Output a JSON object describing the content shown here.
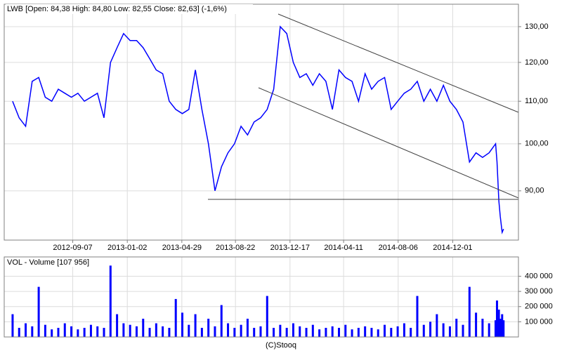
{
  "chart_data": [
    {
      "type": "line",
      "title": "LWB [Open: 84,38  High: 84,80  Low: 82,55  Close: 82,63] (-1,6%)",
      "log": true,
      "grid": true,
      "xlim": [
        "2012-04-13",
        "2015-04-21"
      ],
      "xticks": [
        "2012-09-07",
        "2013-01-02",
        "2013-04-29",
        "2013-08-22",
        "2013-12-17",
        "2014-04-11",
        "2014-08-06",
        "2014-12-01"
      ],
      "ylim": [
        80.6,
        136.7
      ],
      "yticks": [
        {
          "value": 90,
          "label": "90,00"
        },
        {
          "value": 100,
          "label": "100,00"
        },
        {
          "value": 110,
          "label": "110,00"
        },
        {
          "value": 120,
          "label": "120,00"
        },
        {
          "value": 130,
          "label": "130,00"
        }
      ],
      "x": [
        "2012-05-01",
        "2012-05-15",
        "2012-05-29",
        "2012-06-12",
        "2012-06-26",
        "2012-07-10",
        "2012-07-24",
        "2012-08-07",
        "2012-08-21",
        "2012-09-04",
        "2012-09-18",
        "2012-10-02",
        "2012-10-16",
        "2012-10-30",
        "2012-11-13",
        "2012-11-27",
        "2012-12-11",
        "2012-12-25",
        "2013-01-08",
        "2013-01-22",
        "2013-02-05",
        "2013-02-19",
        "2013-03-05",
        "2013-03-19",
        "2013-04-02",
        "2013-04-16",
        "2013-04-30",
        "2013-05-14",
        "2013-05-28",
        "2013-06-11",
        "2013-06-25",
        "2013-07-09",
        "2013-07-23",
        "2013-08-06",
        "2013-08-20",
        "2013-09-03",
        "2013-09-17",
        "2013-10-01",
        "2013-10-15",
        "2013-10-29",
        "2013-11-12",
        "2013-11-26",
        "2013-12-10",
        "2013-12-24",
        "2014-01-07",
        "2014-01-21",
        "2014-02-04",
        "2014-02-18",
        "2014-03-04",
        "2014-03-18",
        "2014-04-01",
        "2014-04-15",
        "2014-04-29",
        "2014-05-13",
        "2014-05-27",
        "2014-06-10",
        "2014-06-24",
        "2014-07-08",
        "2014-07-22",
        "2014-08-05",
        "2014-08-19",
        "2014-09-02",
        "2014-09-16",
        "2014-09-30",
        "2014-10-14",
        "2014-10-28",
        "2014-11-11",
        "2014-11-25",
        "2014-12-09",
        "2014-12-23",
        "2015-01-06",
        "2015-01-20",
        "2015-02-03",
        "2015-02-17",
        "2015-03-03",
        "2015-03-06",
        "2015-03-10",
        "2015-03-13",
        "2015-03-17",
        "2015-03-20"
      ],
      "series": [
        {
          "name": "LWB",
          "color": "#0000ff",
          "values": [
            110,
            106,
            104,
            115,
            116,
            111,
            110,
            113,
            112,
            111,
            112,
            110,
            111,
            112,
            106,
            120,
            124,
            128,
            126,
            126,
            124,
            121,
            118,
            117,
            110,
            108,
            107,
            108,
            118,
            108,
            100,
            90,
            95,
            98,
            100,
            104,
            102,
            105,
            106,
            108,
            113,
            130,
            128,
            120,
            116,
            117,
            114,
            117,
            115,
            108,
            118,
            116,
            115,
            110,
            117,
            113,
            115,
            116,
            108,
            110,
            112,
            113,
            115,
            110,
            113,
            110,
            114,
            110,
            108,
            105,
            96,
            98,
            97,
            98,
            100,
            96,
            88,
            85,
            82,
            82.63
          ]
        }
      ]
    },
    {
      "type": "bar",
      "title": "VOL - Volume [107 956]",
      "grid": true,
      "xlim": [
        "2012-04-13",
        "2015-04-21"
      ],
      "ylim": [
        0,
        527000
      ],
      "yticks": [
        {
          "value": 100000,
          "label": "100 000"
        },
        {
          "value": 200000,
          "label": "200 000"
        },
        {
          "value": 300000,
          "label": "300 000"
        },
        {
          "value": 400000,
          "label": "400 000"
        }
      ],
      "x": [
        "2012-05-01",
        "2012-05-15",
        "2012-05-29",
        "2012-06-12",
        "2012-06-26",
        "2012-07-10",
        "2012-07-24",
        "2012-08-07",
        "2012-08-21",
        "2012-09-04",
        "2012-09-18",
        "2012-10-02",
        "2012-10-16",
        "2012-10-30",
        "2012-11-13",
        "2012-11-27",
        "2012-12-11",
        "2012-12-25",
        "2013-01-08",
        "2013-01-22",
        "2013-02-05",
        "2013-02-19",
        "2013-03-05",
        "2013-03-19",
        "2013-04-02",
        "2013-04-16",
        "2013-04-30",
        "2013-05-14",
        "2013-05-28",
        "2013-06-11",
        "2013-06-25",
        "2013-07-09",
        "2013-07-23",
        "2013-08-06",
        "2013-08-20",
        "2013-09-03",
        "2013-09-17",
        "2013-10-01",
        "2013-10-15",
        "2013-10-29",
        "2013-11-12",
        "2013-11-26",
        "2013-12-10",
        "2013-12-24",
        "2014-01-07",
        "2014-01-21",
        "2014-02-04",
        "2014-02-18",
        "2014-03-04",
        "2014-03-18",
        "2014-04-01",
        "2014-04-15",
        "2014-04-29",
        "2014-05-13",
        "2014-05-27",
        "2014-06-10",
        "2014-06-24",
        "2014-07-08",
        "2014-07-22",
        "2014-08-05",
        "2014-08-19",
        "2014-09-02",
        "2014-09-16",
        "2014-09-30",
        "2014-10-14",
        "2014-10-28",
        "2014-11-11",
        "2014-11-25",
        "2014-12-09",
        "2014-12-23",
        "2015-01-06",
        "2015-01-20",
        "2015-02-03",
        "2015-02-17",
        "2015-03-03",
        "2015-03-06",
        "2015-03-10",
        "2015-03-13",
        "2015-03-17",
        "2015-03-20"
      ],
      "series": [
        {
          "name": "Volume",
          "color": "#0000ff",
          "values": [
            150000,
            60000,
            90000,
            70000,
            330000,
            80000,
            50000,
            60000,
            90000,
            70000,
            50000,
            60000,
            80000,
            70000,
            60000,
            470000,
            150000,
            90000,
            80000,
            70000,
            120000,
            60000,
            90000,
            70000,
            60000,
            250000,
            160000,
            80000,
            150000,
            60000,
            120000,
            70000,
            210000,
            90000,
            60000,
            80000,
            120000,
            60000,
            70000,
            270000,
            60000,
            80000,
            60000,
            90000,
            70000,
            60000,
            80000,
            50000,
            60000,
            70000,
            60000,
            80000,
            50000,
            60000,
            70000,
            60000,
            50000,
            80000,
            60000,
            70000,
            90000,
            60000,
            270000,
            80000,
            100000,
            150000,
            90000,
            70000,
            120000,
            80000,
            330000,
            160000,
            120000,
            90000,
            110000,
            240000,
            180000,
            120000,
            150000,
            110000
          ]
        }
      ]
    }
  ],
  "footer": "(C)Stooq"
}
